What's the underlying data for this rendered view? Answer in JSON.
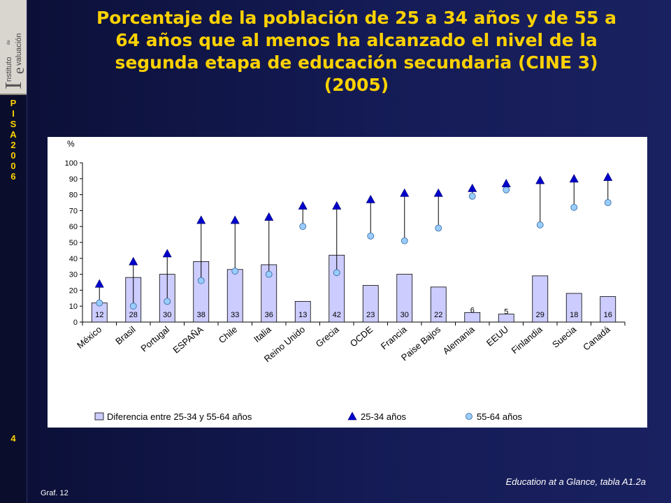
{
  "slide": {
    "title_lines": [
      "Porcentaje de la población de 25 a 34 años y de 55 a",
      "64 años que al menos ha alcanzado el nivel de la",
      "segunda etapa de educación secundaria (CINE 3)",
      "(2005)"
    ],
    "source": "Education at a Glance, tabla  A1.2a",
    "graph_label": "Graf. 12",
    "slide_number": "4",
    "sidebar_letters": [
      "P",
      "I",
      "S",
      "A",
      "2",
      "0",
      "0",
      "6"
    ],
    "logo": {
      "letter_i": "I",
      "word1": "nstituto",
      "small": "de",
      "letter_e": "e",
      "word2": "valuación"
    },
    "colors": {
      "background": "#141b55",
      "title": "#ffd200",
      "bar": "#ccccff",
      "marker": "#0000cc",
      "circle": "#99ccff"
    }
  },
  "chart_data": {
    "type": "bar",
    "ylabel": "%",
    "ylim": [
      0,
      100
    ],
    "yticks": [
      0,
      10,
      20,
      30,
      40,
      50,
      60,
      70,
      80,
      90,
      100
    ],
    "grid": false,
    "legend_position": "bottom",
    "categories": [
      "México",
      "Brasil",
      "Portugal",
      "ESPAÑA",
      "Chile",
      "Italia",
      "Reino Unido",
      "Grecia",
      "OCDE",
      "Francia",
      "Paise Bajos",
      "Alemania",
      "EEUU",
      "Finlandia",
      "Suecia",
      "Canadá"
    ],
    "series": [
      {
        "name": "Diferencia entre 25-34 y 55-64 años",
        "kind": "bar",
        "values": [
          12,
          28,
          30,
          38,
          33,
          36,
          13,
          42,
          23,
          30,
          22,
          6,
          5,
          29,
          18,
          16
        ],
        "labels": [
          "12",
          "28",
          "30",
          "38",
          "33",
          "36",
          "13",
          "42",
          "23",
          "30",
          "22",
          "6",
          "5",
          "29",
          "18",
          "16"
        ]
      },
      {
        "name": "25-34 años",
        "kind": "triangle",
        "values": [
          24,
          38,
          43,
          64,
          64,
          66,
          73,
          73,
          77,
          81,
          81,
          84,
          87,
          89,
          90,
          91
        ]
      },
      {
        "name": "55-64 años",
        "kind": "circle",
        "values": [
          12,
          10,
          13,
          26,
          32,
          30,
          60,
          31,
          54,
          51,
          59,
          79,
          83,
          61,
          72,
          75
        ]
      }
    ]
  }
}
